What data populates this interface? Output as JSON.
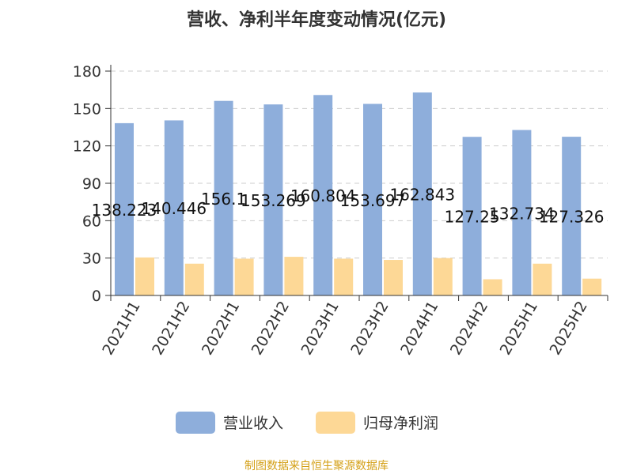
{
  "chart_data": {
    "type": "bar",
    "title": "营收、净利半年度变动情况(亿元)",
    "categories": [
      "2021H1",
      "2021H2",
      "2022H1",
      "2022H2",
      "2023H1",
      "2023H2",
      "2024H1",
      "2024H2",
      "2025H1",
      "2025H2"
    ],
    "series": [
      {
        "name": "营业收入",
        "color": "#8eaedb",
        "values": [
          138.223,
          140.446,
          156.1,
          153.269,
          160.804,
          153.697,
          162.843,
          127.25,
          132.734,
          127.326
        ],
        "labels": [
          "138.223",
          "140.446",
          "156.1",
          "153.269",
          "160.804",
          "153.697",
          "162.843",
          "127.25",
          "132.734",
          "127.326"
        ]
      },
      {
        "name": "归母净利润",
        "color": "#fdd896",
        "values": [
          30.5,
          25.5,
          29.5,
          31,
          29.5,
          28.5,
          30,
          13,
          25.5,
          13.5
        ]
      }
    ],
    "ylim": [
      0,
      180
    ],
    "yticks": [
      "0",
      "30",
      "60",
      "90",
      "120",
      "150",
      "180"
    ],
    "grid": true,
    "legend": "bottom"
  },
  "source": "制图数据来自恒生聚源数据库"
}
